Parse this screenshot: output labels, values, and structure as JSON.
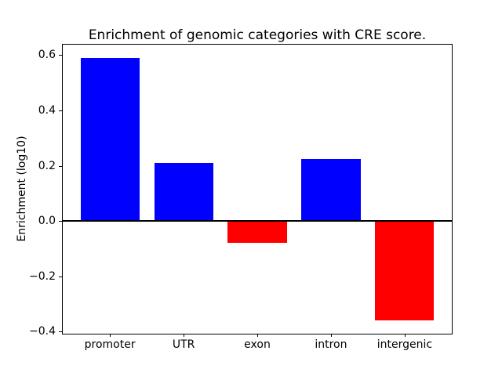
{
  "window": {
    "background_color": "#ffffff"
  },
  "chart_data": {
    "type": "bar",
    "title": "Enrichment of genomic categories with CRE score.",
    "xlabel": "",
    "ylabel": "Enrichment (log10)",
    "categories": [
      "promoter",
      "UTR",
      "exon",
      "intron",
      "intergenic"
    ],
    "values": [
      0.59,
      0.21,
      -0.08,
      0.225,
      -0.36
    ],
    "bar_width": 0.8,
    "positive_color": "#0000ff",
    "negative_color": "#ff0000",
    "zero_line_color": "#000000",
    "axis_color": "#000000",
    "text_color": "#000000",
    "ylim": [
      -0.4075,
      0.6375
    ],
    "xlim": [
      -0.64,
      4.64
    ],
    "yticks": [
      0.6,
      0.4,
      0.2,
      0.0,
      -0.2,
      -0.4
    ],
    "ytick_labels": [
      "0.6",
      "0.4",
      "0.2",
      "0.0",
      "−0.2",
      "−0.4"
    ],
    "grid": false,
    "legend": null
  }
}
